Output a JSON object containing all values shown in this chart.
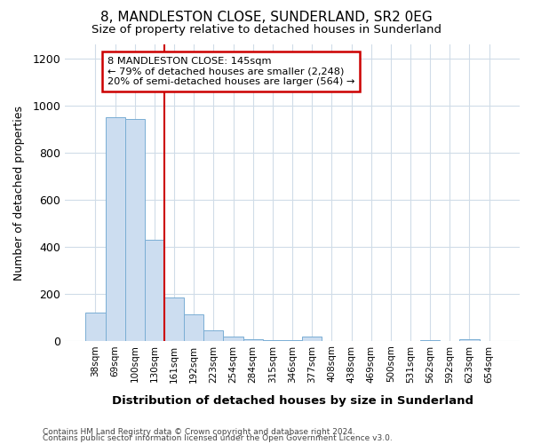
{
  "title1": "8, MANDLESTON CLOSE, SUNDERLAND, SR2 0EG",
  "title2": "Size of property relative to detached houses in Sunderland",
  "xlabel": "Distribution of detached houses by size in Sunderland",
  "ylabel": "Number of detached properties",
  "categories": [
    "38sqm",
    "69sqm",
    "100sqm",
    "130sqm",
    "161sqm",
    "192sqm",
    "223sqm",
    "254sqm",
    "284sqm",
    "315sqm",
    "346sqm",
    "377sqm",
    "408sqm",
    "438sqm",
    "469sqm",
    "500sqm",
    "531sqm",
    "562sqm",
    "592sqm",
    "623sqm",
    "654sqm"
  ],
  "values": [
    120,
    950,
    945,
    430,
    185,
    115,
    47,
    20,
    8,
    5,
    5,
    20,
    0,
    0,
    0,
    0,
    0,
    5,
    0,
    10,
    0
  ],
  "bar_color": "#ccddf0",
  "bar_edge_color": "#7aaed4",
  "red_line_index": 3.5,
  "annotation_text_line1": "8 MANDLESTON CLOSE: 145sqm",
  "annotation_text_line2": "← 79% of detached houses are smaller (2,248)",
  "annotation_text_line3": "20% of semi-detached houses are larger (564) →",
  "annotation_box_color": "white",
  "annotation_box_edge_color": "#cc0000",
  "ylim": [
    0,
    1260
  ],
  "yticks": [
    0,
    200,
    400,
    600,
    800,
    1000,
    1200
  ],
  "footer1": "Contains HM Land Registry data © Crown copyright and database right 2024.",
  "footer2": "Contains public sector information licensed under the Open Government Licence v3.0.",
  "background_color": "white",
  "grid_color": "#d0dce8"
}
